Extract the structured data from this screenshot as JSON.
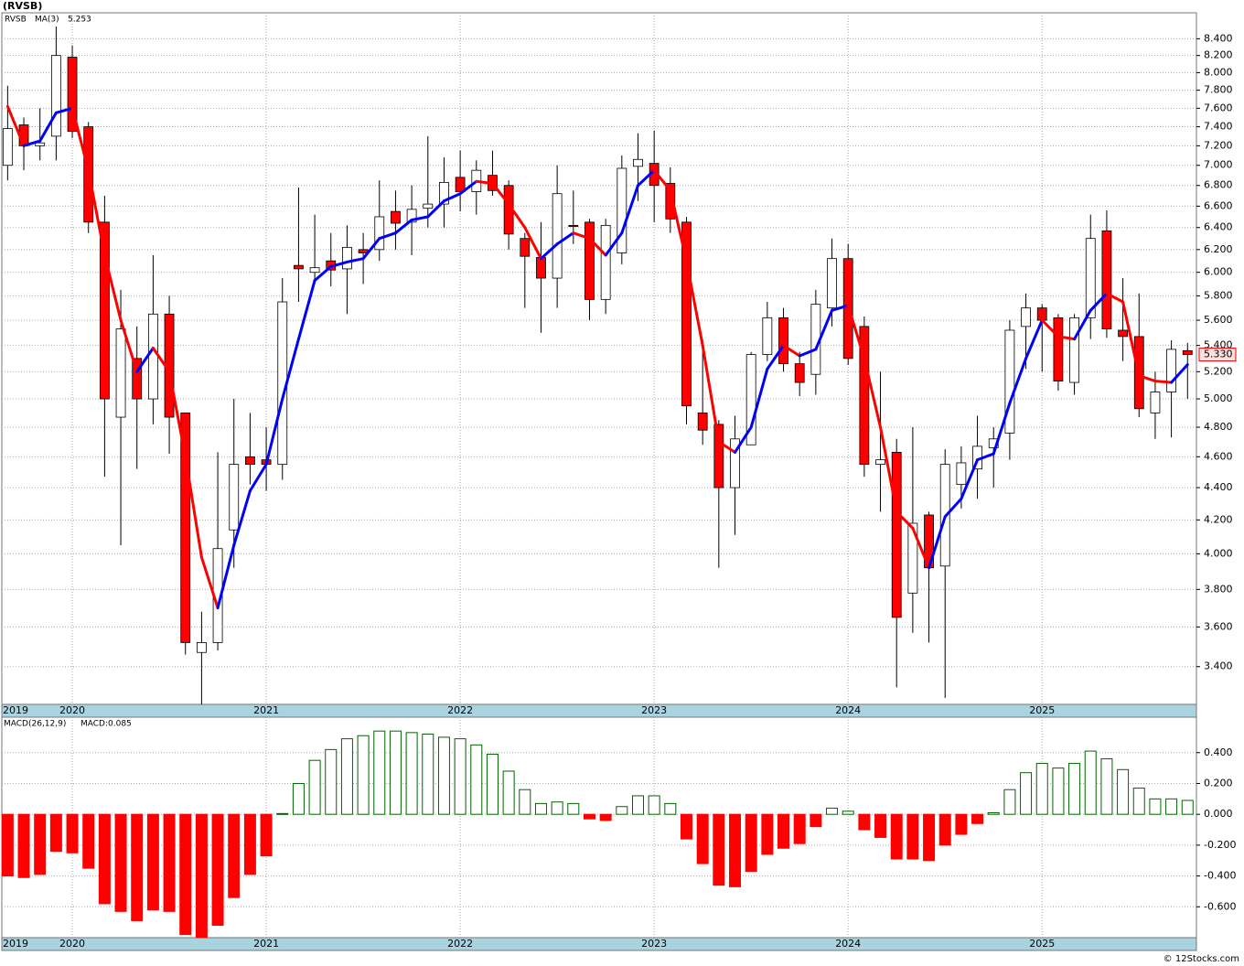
{
  "header": {
    "title": "(RVSB)"
  },
  "chart_data": [
    {
      "type": "candlestick",
      "symbol": "RVSB",
      "ma_name": "MA(3)",
      "ma_value_label": "5.253",
      "last_close_label": "5.330",
      "log_scale": true,
      "grid": true,
      "ylim": [
        3.22,
        8.72
      ],
      "yticks": [
        {
          "value": 3.4,
          "label": "3.400"
        },
        {
          "value": 3.6,
          "label": "3.600"
        },
        {
          "value": 3.8,
          "label": "3.800"
        },
        {
          "value": 4.0,
          "label": "4.000"
        },
        {
          "value": 4.2,
          "label": "4.200"
        },
        {
          "value": 4.4,
          "label": "4.400"
        },
        {
          "value": 4.6,
          "label": "4.600"
        },
        {
          "value": 4.8,
          "label": "4.800"
        },
        {
          "value": 5.0,
          "label": "5.000"
        },
        {
          "value": 5.2,
          "label": "5.200"
        },
        {
          "value": 5.4,
          "label": "5.400"
        },
        {
          "value": 5.6,
          "label": "5.600"
        },
        {
          "value": 5.8,
          "label": "5.800"
        },
        {
          "value": 6.0,
          "label": "6.000"
        },
        {
          "value": 6.2,
          "label": "6.200"
        },
        {
          "value": 6.4,
          "label": "6.400"
        },
        {
          "value": 6.6,
          "label": "6.600"
        },
        {
          "value": 6.8,
          "label": "6.800"
        },
        {
          "value": 7.0,
          "label": "7.000"
        },
        {
          "value": 7.2,
          "label": "7.200"
        },
        {
          "value": 7.4,
          "label": "7.400"
        },
        {
          "value": 7.6,
          "label": "7.600"
        },
        {
          "value": 7.8,
          "label": "7.800"
        },
        {
          "value": 8.0,
          "label": "8.000"
        },
        {
          "value": 8.2,
          "label": "8.200"
        },
        {
          "value": 8.4,
          "label": "8.400"
        }
      ],
      "xticks": [
        {
          "value": -8,
          "label": "2019"
        },
        {
          "value": 4,
          "label": "2020"
        },
        {
          "value": 16,
          "label": "2021"
        },
        {
          "value": 28,
          "label": "2022"
        },
        {
          "value": 40,
          "label": "2023"
        },
        {
          "value": 52,
          "label": "2024"
        },
        {
          "value": 64,
          "label": "2025"
        }
      ],
      "open": [
        7.0,
        7.42,
        7.2,
        7.3,
        8.18,
        7.4,
        6.45,
        4.87,
        5.3,
        5.0,
        5.65,
        4.9,
        3.47,
        3.52,
        4.14,
        4.6,
        4.58,
        4.55,
        6.06,
        6.0,
        6.1,
        6.03,
        6.2,
        6.2,
        6.55,
        6.45,
        6.58,
        6.62,
        6.88,
        6.74,
        6.9,
        6.8,
        6.3,
        6.13,
        5.95,
        6.42,
        6.45,
        5.77,
        6.17,
        6.99,
        7.02,
        6.82,
        6.45,
        4.9,
        4.82,
        4.4,
        4.68,
        5.33,
        5.62,
        5.26,
        5.18,
        5.7,
        6.12,
        5.55,
        4.55,
        4.63,
        3.78,
        4.23,
        3.93,
        4.42,
        4.52,
        4.66,
        4.76,
        5.55,
        5.7,
        5.62,
        5.12,
        5.62,
        6.37,
        5.52,
        5.47,
        4.9,
        5.05,
        5.36
      ],
      "high": [
        7.85,
        7.5,
        7.6,
        8.55,
        8.32,
        7.45,
        6.7,
        5.85,
        5.55,
        6.15,
        5.8,
        4.9,
        3.68,
        4.63,
        5.0,
        4.9,
        4.8,
        5.95,
        6.78,
        6.52,
        6.35,
        6.42,
        6.35,
        6.85,
        6.75,
        6.8,
        7.3,
        7.08,
        7.15,
        7.05,
        7.15,
        6.85,
        6.35,
        6.45,
        7.0,
        6.75,
        6.48,
        6.48,
        7.1,
        7.33,
        7.36,
        6.98,
        6.5,
        5.45,
        4.85,
        4.88,
        5.35,
        5.75,
        5.7,
        5.35,
        5.85,
        6.3,
        6.25,
        5.63,
        5.2,
        4.72,
        4.8,
        4.25,
        4.65,
        4.67,
        4.88,
        4.8,
        5.6,
        5.82,
        5.73,
        5.65,
        5.65,
        6.52,
        6.56,
        5.95,
        5.82,
        5.2,
        5.44,
        5.42
      ],
      "low": [
        6.85,
        6.95,
        7.05,
        7.05,
        7.28,
        6.35,
        4.47,
        4.05,
        4.52,
        4.82,
        4.62,
        3.46,
        3.22,
        3.48,
        3.92,
        4.42,
        4.38,
        4.45,
        5.75,
        5.9,
        5.88,
        5.65,
        5.9,
        6.1,
        6.2,
        6.15,
        6.4,
        6.4,
        6.55,
        6.52,
        6.7,
        6.2,
        5.7,
        5.5,
        5.7,
        6.25,
        5.6,
        5.65,
        6.07,
        6.65,
        6.45,
        6.35,
        4.82,
        4.68,
        3.92,
        4.11,
        4.68,
        5.28,
        5.2,
        5.02,
        5.03,
        5.55,
        5.25,
        4.47,
        4.25,
        3.3,
        3.57,
        3.52,
        3.25,
        4.27,
        4.33,
        4.4,
        4.58,
        5.22,
        5.2,
        5.06,
        5.03,
        5.45,
        5.46,
        5.28,
        4.87,
        4.72,
        4.73,
        5.0
      ],
      "close": [
        7.38,
        7.2,
        7.23,
        8.2,
        7.35,
        6.45,
        5.0,
        5.53,
        5.0,
        5.65,
        4.87,
        3.52,
        3.52,
        4.03,
        4.55,
        4.55,
        4.55,
        5.75,
        6.03,
        6.04,
        6.02,
        6.22,
        6.17,
        6.5,
        6.44,
        6.57,
        6.62,
        6.83,
        6.74,
        6.95,
        6.75,
        6.34,
        6.14,
        5.95,
        6.72,
        6.41,
        5.77,
        6.42,
        6.97,
        7.06,
        6.8,
        6.48,
        4.95,
        4.78,
        4.4,
        4.72,
        5.33,
        5.62,
        5.26,
        5.12,
        5.73,
        6.12,
        5.3,
        4.55,
        4.58,
        3.65,
        4.18,
        3.92,
        4.55,
        4.56,
        4.67,
        4.72,
        5.52,
        5.7,
        5.6,
        5.13,
        5.62,
        6.3,
        5.53,
        5.47,
        4.93,
        5.05,
        5.37,
        5.33
      ],
      "ma": [
        7.62,
        7.2,
        7.25,
        7.55,
        7.6,
        6.95,
        6.15,
        5.6,
        5.2,
        5.38,
        5.2,
        4.6,
        3.98,
        3.7,
        4.05,
        4.38,
        4.55,
        5.0,
        5.45,
        5.93,
        6.05,
        6.09,
        6.12,
        6.3,
        6.35,
        6.47,
        6.5,
        6.65,
        6.72,
        6.84,
        6.82,
        6.62,
        6.4,
        6.12,
        6.25,
        6.35,
        6.3,
        6.15,
        6.35,
        6.8,
        6.95,
        6.75,
        6.1,
        5.4,
        4.7,
        4.63,
        4.8,
        5.22,
        5.4,
        5.32,
        5.37,
        5.68,
        5.72,
        5.3,
        4.8,
        4.25,
        4.15,
        3.92,
        4.22,
        4.33,
        4.58,
        4.62,
        4.97,
        5.3,
        5.6,
        5.47,
        5.45,
        5.68,
        5.82,
        5.75,
        5.17,
        5.13,
        5.12,
        5.253
      ],
      "up_color": "#ffffff",
      "down_color": "#ff0000",
      "ma_up_color": "#0000ff",
      "ma_down_color": "#ff0000",
      "symbol_color": "#007700",
      "ma_label_color": "#0000cc"
    },
    {
      "type": "bar",
      "title": "MACD(26,12,9)",
      "value_label": "MACD:0.085",
      "grid": true,
      "ylim": [
        -0.8,
        0.63
      ],
      "yticks": [
        {
          "value": -0.6,
          "label": "-0.600"
        },
        {
          "value": -0.4,
          "label": "-0.400"
        },
        {
          "value": -0.2,
          "label": "-0.200"
        },
        {
          "value": 0.0,
          "label": "0.000"
        },
        {
          "value": 0.2,
          "label": "0.200"
        },
        {
          "value": 0.4,
          "label": "0.400"
        }
      ],
      "xticks": [
        {
          "value": -8,
          "label": "2019"
        },
        {
          "value": 4,
          "label": "2020"
        },
        {
          "value": 16,
          "label": "2021"
        },
        {
          "value": 28,
          "label": "2022"
        },
        {
          "value": 40,
          "label": "2023"
        },
        {
          "value": 52,
          "label": "2024"
        },
        {
          "value": 64,
          "label": "2025"
        }
      ],
      "values": [
        -0.4,
        -0.41,
        -0.39,
        -0.24,
        -0.25,
        -0.35,
        -0.58,
        -0.63,
        -0.69,
        -0.62,
        -0.63,
        -0.78,
        -0.8,
        -0.72,
        -0.54,
        -0.39,
        -0.27,
        0.005,
        0.2,
        0.35,
        0.42,
        0.49,
        0.51,
        0.54,
        0.54,
        0.53,
        0.52,
        0.5,
        0.49,
        0.45,
        0.39,
        0.28,
        0.16,
        0.07,
        0.08,
        0.07,
        -0.03,
        -0.04,
        0.05,
        0.12,
        0.12,
        0.07,
        -0.16,
        -0.32,
        -0.46,
        -0.47,
        -0.37,
        -0.26,
        -0.22,
        -0.19,
        -0.08,
        0.04,
        0.02,
        -0.1,
        -0.15,
        -0.29,
        -0.29,
        -0.3,
        -0.2,
        -0.13,
        -0.06,
        0.01,
        0.16,
        0.27,
        0.33,
        0.3,
        0.33,
        0.41,
        0.36,
        0.29,
        0.17,
        0.1,
        0.1,
        0.09
      ],
      "pos_color": "#006400",
      "neg_color": "#ff0000",
      "value_label_color": "#0000cc"
    }
  ],
  "footer": "© 12Stocks.com"
}
